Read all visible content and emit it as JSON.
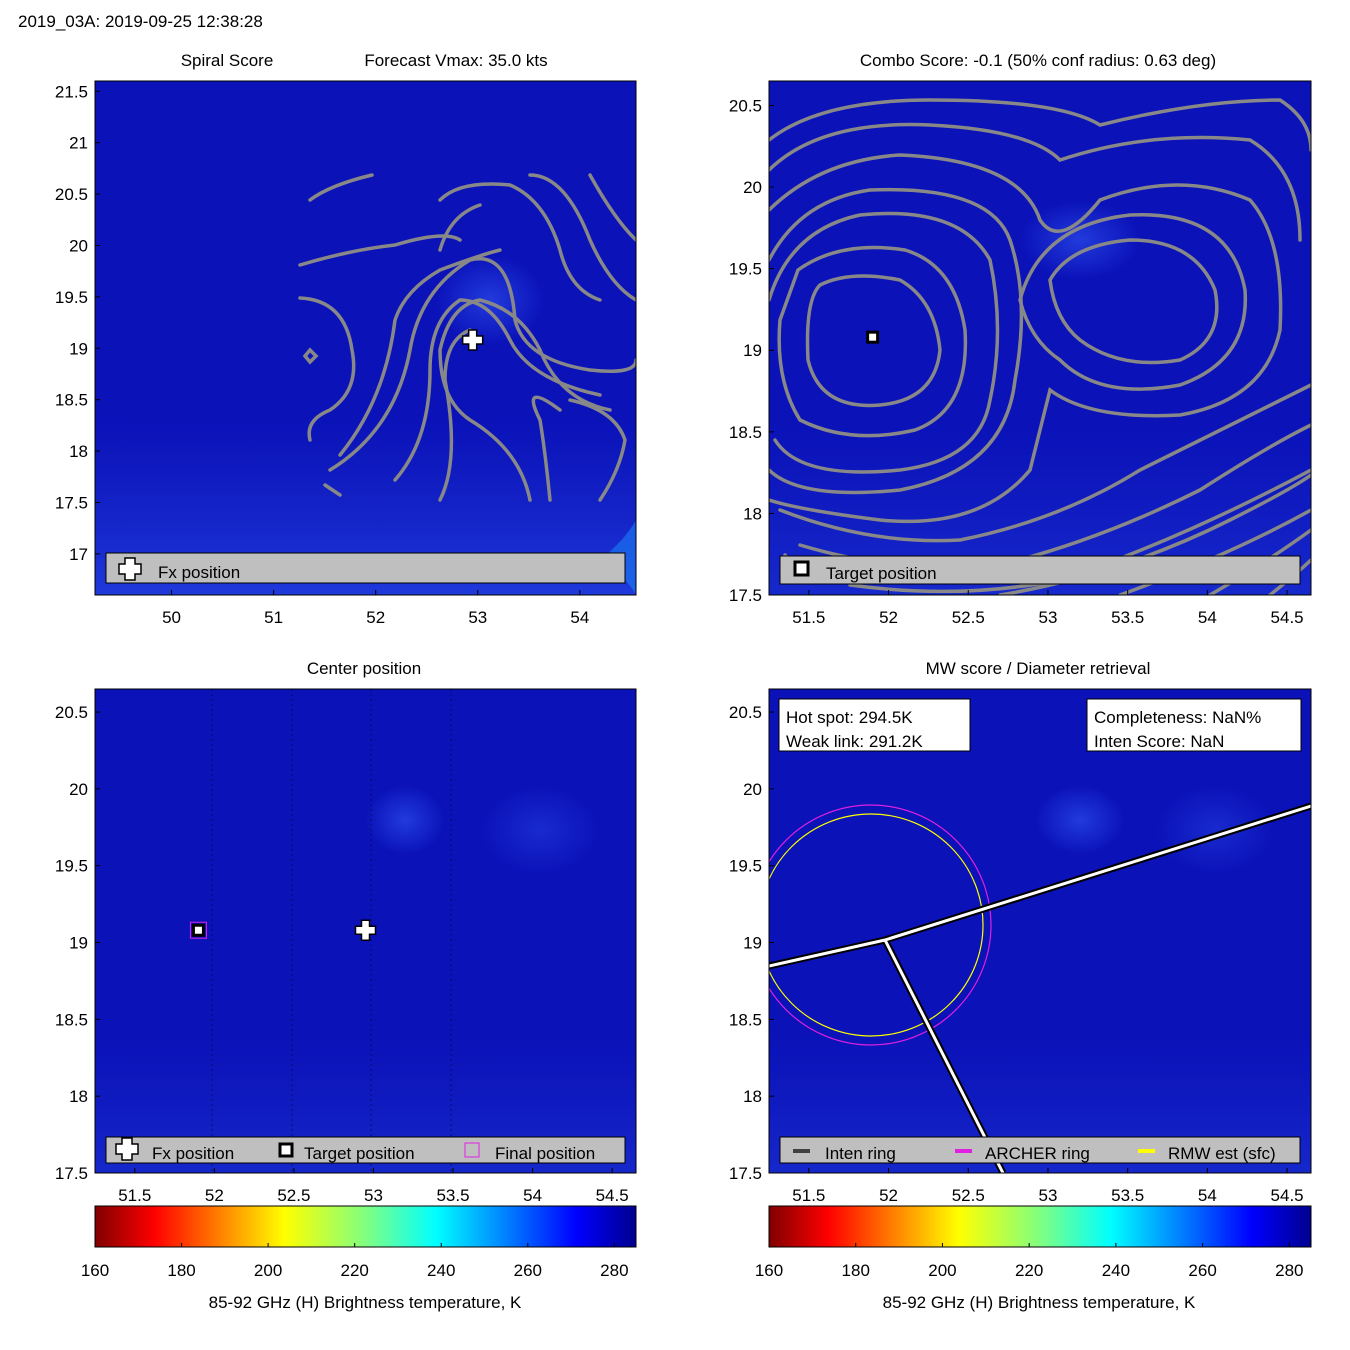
{
  "header": {
    "title": "2019_03A: 2019-09-25 12:38:28"
  },
  "colors": {
    "field": "#0a12b8",
    "contour": "#888888",
    "legend_bg": "#bfbfbf",
    "archer_ring": "#e020e0",
    "rmw_ring": "#ffff00",
    "inten_ring": "#404040"
  },
  "chart_data": [
    {
      "type": "heatmap",
      "panel": "spiral-score",
      "title": "Spiral Score",
      "subtitle": "Forecast Vmax: 35.0 kts",
      "xlim": [
        49.25,
        54.55
      ],
      "ylim": [
        16.6,
        21.6
      ],
      "xticks": [
        50,
        51,
        52,
        53,
        54
      ],
      "yticks": [
        17,
        17.5,
        18,
        18.5,
        19,
        19.5,
        20,
        20.5,
        21,
        21.5
      ],
      "markers": [
        {
          "name": "Fx position",
          "symbol": "cross",
          "x": 52.95,
          "y": 19.08
        }
      ],
      "legend": [
        "Fx position"
      ],
      "legend_position": "bottom"
    },
    {
      "type": "heatmap",
      "panel": "combo-score",
      "title": "Combo Score: -0.1  (50% conf radius: 0.63 deg)",
      "xlim": [
        51.25,
        54.65
      ],
      "ylim": [
        17.5,
        20.65
      ],
      "xticks": [
        51.5,
        52,
        52.5,
        53,
        53.5,
        54,
        54.5
      ],
      "yticks": [
        17.5,
        18,
        18.5,
        19,
        19.5,
        20,
        20.5
      ],
      "markers": [
        {
          "name": "Target position",
          "symbol": "square",
          "x": 51.9,
          "y": 19.08
        }
      ],
      "legend": [
        "Target position"
      ],
      "legend_position": "bottom"
    },
    {
      "type": "heatmap",
      "panel": "center-position",
      "title": "Center position",
      "xlim": [
        51.25,
        54.65
      ],
      "ylim": [
        17.5,
        20.65
      ],
      "xticks": [
        51.5,
        52,
        52.5,
        53,
        53.5,
        54,
        54.5
      ],
      "yticks": [
        17.5,
        18,
        18.5,
        19,
        19.5,
        20,
        20.5
      ],
      "markers": [
        {
          "name": "Fx position",
          "symbol": "cross",
          "x": 52.95,
          "y": 19.08
        },
        {
          "name": "Target position",
          "symbol": "square",
          "x": 51.9,
          "y": 19.08
        },
        {
          "name": "Final position",
          "symbol": "magenta-square",
          "x": 51.9,
          "y": 19.08
        }
      ],
      "legend": [
        "Fx position",
        "Target position",
        "Final position"
      ],
      "legend_position": "bottom",
      "colorbar": {
        "min": 160,
        "max": 285,
        "ticks": [
          160,
          180,
          200,
          220,
          240,
          260,
          280
        ],
        "label": "85-92 GHz (H) Brightness temperature, K",
        "colormap": "jet-reversed"
      }
    },
    {
      "type": "heatmap",
      "panel": "mw-score",
      "title": "MW score / Diameter retrieval",
      "xlim": [
        51.25,
        54.65
      ],
      "ylim": [
        17.5,
        20.65
      ],
      "xticks": [
        51.5,
        52,
        52.5,
        53,
        53.5,
        54,
        54.5
      ],
      "yticks": [
        17.5,
        18,
        18.5,
        19,
        19.5,
        20,
        20.5
      ],
      "info_left": [
        "Hot spot: 294.5K",
        "Weak link: 291.2K"
      ],
      "info_right": [
        "Completeness: NaN%",
        "Inten Score: NaN"
      ],
      "legend": [
        "Inten ring",
        "ARCHER ring",
        "RMW est (sfc)"
      ],
      "legend_position": "bottom",
      "colorbar": {
        "min": 160,
        "max": 285,
        "ticks": [
          160,
          180,
          200,
          220,
          240,
          260,
          280
        ],
        "label": "85-92 GHz (H) Brightness temperature, K",
        "colormap": "jet-reversed"
      }
    }
  ]
}
